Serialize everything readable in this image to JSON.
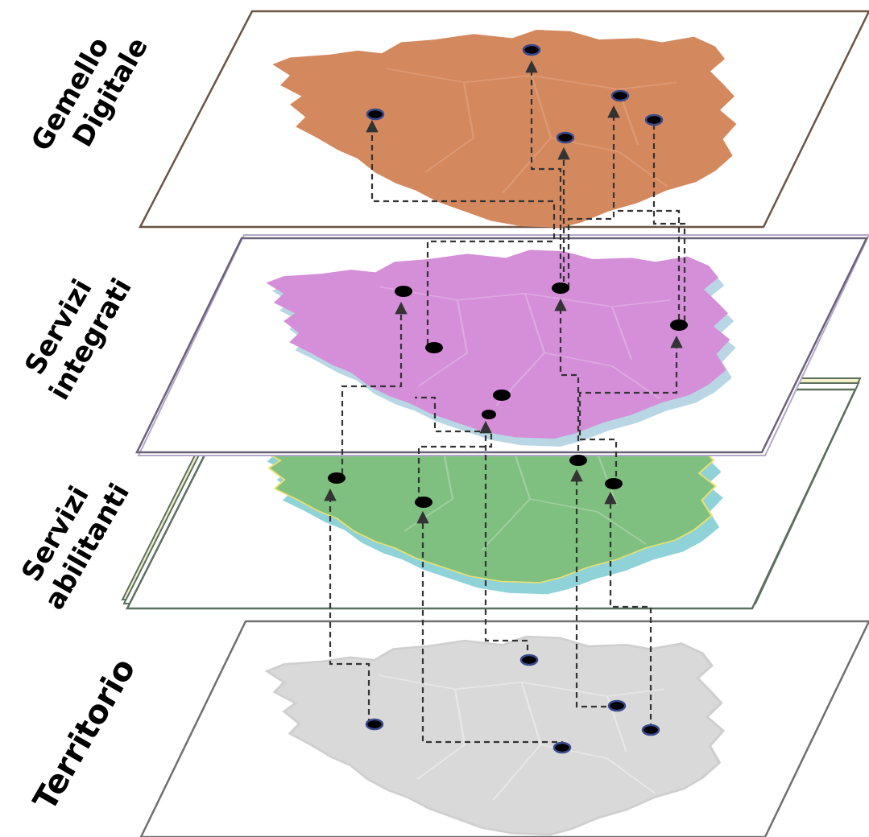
{
  "layers": [
    {
      "id": "gemello",
      "label_lines": [
        "Gemello",
        "Digitale"
      ],
      "fill": "#d4885e",
      "border": "#c07a55",
      "plane_stroke": "#6b5545"
    },
    {
      "id": "servizi-integrati",
      "label_lines": [
        "Servizi",
        "integrati"
      ],
      "fill": "#d58ed8",
      "border": "#b9d6e4",
      "plane_stroke": "#6a6278"
    },
    {
      "id": "servizi-abilitanti",
      "label_lines": [
        "Servizi",
        "abilitanti"
      ],
      "fill": "#7fbf7f",
      "border": "#8fd3d9",
      "plane_stroke": "#5c7060"
    },
    {
      "id": "territorio",
      "label_lines": [
        "Territorio"
      ],
      "fill": "#d9d9d9",
      "border": "#cfcfcf",
      "plane_stroke": "#707070"
    }
  ],
  "colors": {
    "connector": "#333333",
    "node_fill": "#000000",
    "node_ring": "#3b4a8c",
    "accent_yellow": "#e8e070"
  }
}
